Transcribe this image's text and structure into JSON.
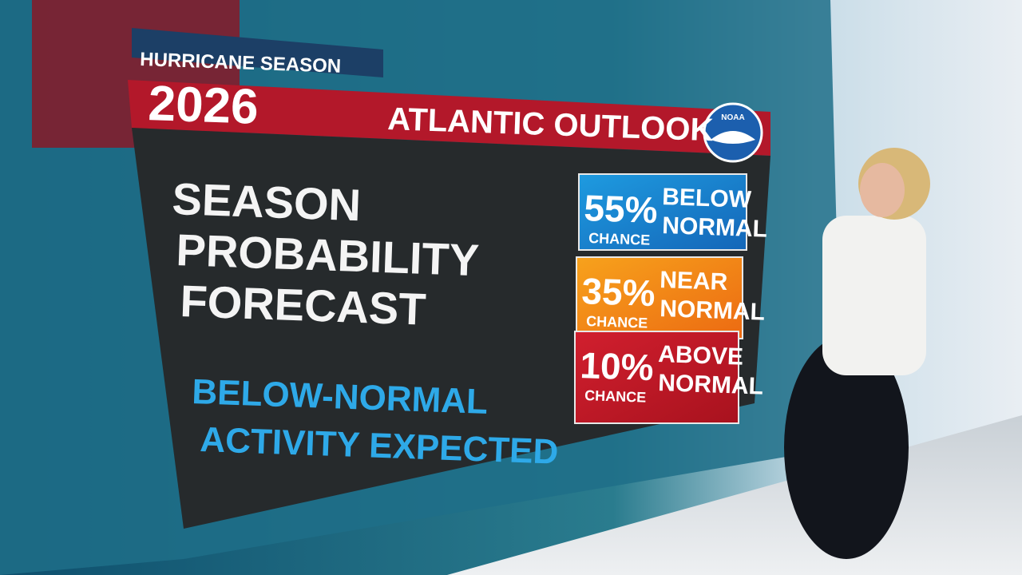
{
  "header": {
    "kicker": "HURRICANE SEASON",
    "year": "2026",
    "title": "ATLANTIC OUTLOOK",
    "logo": "NOAA"
  },
  "headline": {
    "lines": [
      "SEASON",
      "PROBABILITY",
      "FORECAST"
    ]
  },
  "summary": {
    "lines": [
      "BELOW-NORMAL",
      "ACTIVITY EXPECTED"
    ]
  },
  "probabilities": [
    {
      "percent": "55%",
      "chance": "CHANCE",
      "label": [
        "BELOW",
        "NORMAL"
      ]
    },
    {
      "percent": "35%",
      "chance": "CHANCE",
      "label": [
        "NEAR",
        "NORMAL"
      ]
    },
    {
      "percent": "10%",
      "chance": "CHANCE",
      "label": [
        "ABOVE",
        "NORMAL"
      ]
    }
  ]
}
